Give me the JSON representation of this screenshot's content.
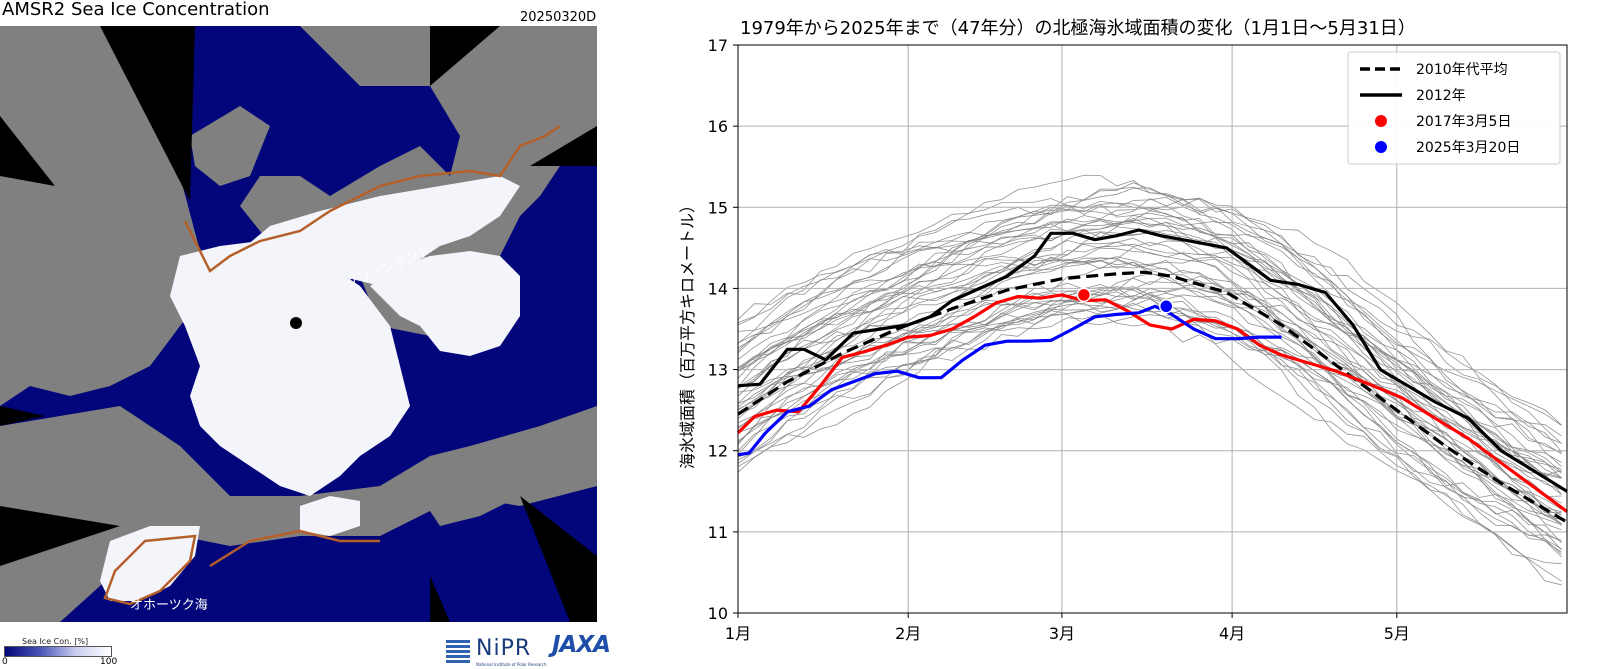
{
  "map": {
    "title": "AMSR2 Sea Ice Concentration",
    "date": "20250320D",
    "label_greenland": "グリーンランド",
    "label_okhotsk": "オホーツク海",
    "colorbar_label": "Sea Ice Con. [%]",
    "colorbar_min": "0",
    "colorbar_max": "100",
    "colors": {
      "ocean": "#03067a",
      "land": "#808080",
      "ice": "#f4f5fb",
      "coast_line": "#b5602a"
    }
  },
  "logos": {
    "nipr": "NiPR",
    "nipr_sub": "National Institute of Polar Research",
    "jaxa": "JAXA"
  },
  "chart_data": {
    "type": "line",
    "title": "1979年から2025年まで（47年分）の北極海氷域面積の変化（1月1日〜5月31日）",
    "ylabel": "海氷域面積（百万平方キロメートル）",
    "xlabel": "",
    "x_ticks": [
      "1月",
      "2月",
      "3月",
      "4月",
      "5月"
    ],
    "x_tick_days": [
      1,
      32,
      60,
      91,
      121
    ],
    "xlim": [
      1,
      152
    ],
    "ylim": [
      10,
      17
    ],
    "y_ticks": [
      10,
      11,
      12,
      13,
      14,
      15,
      16,
      17
    ],
    "grid": true,
    "legend_position": "top-right",
    "legend": [
      {
        "label": "2010年代平均",
        "style": "dashed",
        "color": "#000000"
      },
      {
        "label": "2012年",
        "style": "solid",
        "color": "#000000"
      },
      {
        "label": "2017年3月5日",
        "style": "marker",
        "color": "#ff0000"
      },
      {
        "label": "2025年3月20日",
        "style": "marker",
        "color": "#0000ff"
      }
    ],
    "background_years": {
      "count": 47,
      "color": "#808080",
      "description": "1979-2025 individual years"
    },
    "series": [
      {
        "name": "2010年代平均",
        "color": "#000000",
        "style": "dashed",
        "x": [
          1,
          10,
          20,
          30,
          40,
          50,
          60,
          70,
          75,
          80,
          90,
          100,
          110,
          120,
          130,
          140,
          152
        ],
        "values": [
          12.45,
          12.85,
          13.2,
          13.5,
          13.75,
          13.98,
          14.12,
          14.18,
          14.2,
          14.15,
          13.95,
          13.55,
          13.05,
          12.55,
          12.05,
          11.6,
          11.12
        ]
      },
      {
        "name": "2012年",
        "color": "#000000",
        "style": "solid",
        "x": [
          1,
          5,
          10,
          13,
          17,
          22,
          27,
          32,
          36,
          40,
          45,
          50,
          55,
          58,
          62,
          66,
          70,
          74,
          78,
          82,
          86,
          90,
          94,
          98,
          103,
          108,
          113,
          118,
          123,
          128,
          134,
          140,
          146,
          152
        ],
        "values": [
          12.8,
          12.82,
          13.25,
          13.25,
          13.12,
          13.45,
          13.5,
          13.55,
          13.65,
          13.85,
          14.0,
          14.15,
          14.4,
          14.68,
          14.68,
          14.6,
          14.65,
          14.72,
          14.65,
          14.6,
          14.55,
          14.5,
          14.3,
          14.1,
          14.05,
          13.95,
          13.55,
          13.0,
          12.8,
          12.6,
          12.4,
          12.0,
          11.75,
          11.5
        ]
      },
      {
        "name": "2017年",
        "color": "#ff0000",
        "style": "solid",
        "x": [
          1,
          4,
          8,
          12,
          16,
          20,
          24,
          28,
          32,
          36,
          40,
          44,
          48,
          52,
          56,
          60,
          64,
          68,
          72,
          76,
          80,
          84,
          88,
          92,
          96,
          100,
          104,
          110,
          116,
          122,
          128,
          134,
          140,
          146,
          152
        ],
        "values": [
          12.22,
          12.42,
          12.5,
          12.48,
          12.8,
          13.15,
          13.22,
          13.3,
          13.4,
          13.42,
          13.5,
          13.65,
          13.82,
          13.9,
          13.88,
          13.92,
          13.85,
          13.86,
          13.72,
          13.55,
          13.5,
          13.62,
          13.6,
          13.5,
          13.3,
          13.18,
          13.1,
          12.98,
          12.82,
          12.65,
          12.4,
          12.15,
          11.85,
          11.55,
          11.25
        ]
      },
      {
        "name": "2025年",
        "color": "#0000ff",
        "style": "solid",
        "x": [
          1,
          3,
          6,
          10,
          14,
          18,
          22,
          26,
          30,
          34,
          38,
          42,
          46,
          50,
          54,
          58,
          62,
          66,
          70,
          74,
          77,
          80,
          84,
          88,
          92,
          96,
          100
        ],
        "values": [
          11.95,
          11.97,
          12.22,
          12.48,
          12.55,
          12.75,
          12.85,
          12.95,
          12.98,
          12.9,
          12.9,
          13.12,
          13.3,
          13.35,
          13.35,
          13.36,
          13.5,
          13.65,
          13.68,
          13.7,
          13.78,
          13.68,
          13.5,
          13.38,
          13.38,
          13.4,
          13.4
        ]
      }
    ],
    "markers": [
      {
        "label": "2017年3月5日",
        "x": 64,
        "y": 13.92,
        "color": "#ff0000"
      },
      {
        "label": "2025年3月20日",
        "x": 79,
        "y": 13.78,
        "color": "#0000ff"
      }
    ]
  }
}
